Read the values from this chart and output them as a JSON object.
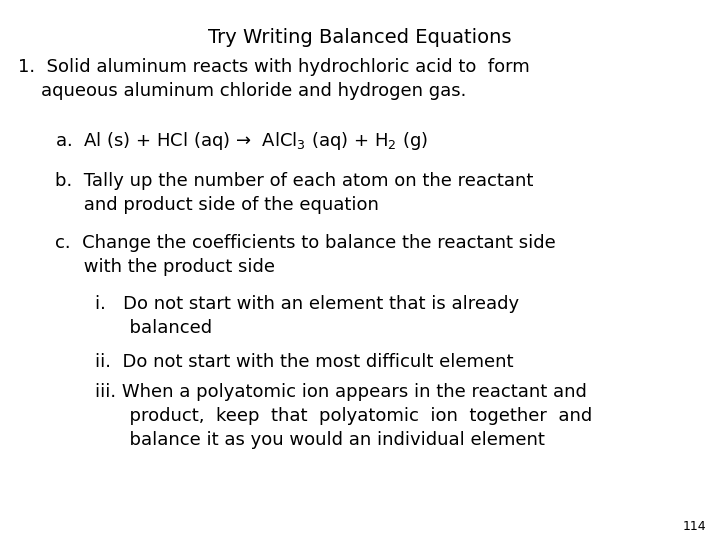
{
  "title": "Try Writing Balanced Equations",
  "background_color": "#ffffff",
  "text_color": "#000000",
  "page_number": "114",
  "title_fontsize": 14,
  "body_fontsize": 13,
  "small_fontsize": 9,
  "line1": "1.  Solid aluminum reacts with hydrochloric acid to  form",
  "line2": "    aqueous aluminum chloride and hydrogen gas.",
  "line_a": "a.  Al (s) + HCl (aq) →  AlCl$_3$ (aq) + H$_2$ (g)",
  "line_b1": "b.  Tally up the number of each atom on the reactant",
  "line_b2": "     and product side of the equation",
  "line_c1": "c.  Change the coefficients to balance the reactant side",
  "line_c2": "     with the product side",
  "line_i1": "i.   Do not start with an element that is already",
  "line_i2": "      balanced",
  "line_ii": "ii.  Do not start with the most difficult element",
  "line_iii1": "iii. When a polyatomic ion appears in the reactant and",
  "line_iii2": "      product,  keep  that  polyatomic  ion  together  and",
  "line_iii3": "      balance it as you would an individual element"
}
